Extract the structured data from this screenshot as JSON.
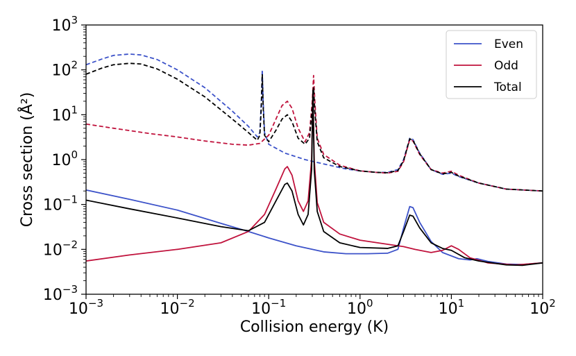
{
  "chart_data": {
    "type": "line",
    "xscale": "log",
    "yscale": "log",
    "xlim": [
      0.001,
      100
    ],
    "ylim": [
      0.001,
      1000
    ],
    "xlabel": "Collision energy (K)",
    "ylabel": "Cross section (Å²)",
    "x_tick_labels": [
      {
        "base": "10",
        "exp": "−3"
      },
      {
        "base": "10",
        "exp": "−2"
      },
      {
        "base": "10",
        "exp": "−1"
      },
      {
        "base": "10",
        "exp": "0"
      },
      {
        "base": "10",
        "exp": "1"
      },
      {
        "base": "10",
        "exp": "2"
      }
    ],
    "y_tick_labels": [
      {
        "base": "10",
        "exp": "−3"
      },
      {
        "base": "10",
        "exp": "−2"
      },
      {
        "base": "10",
        "exp": "−1"
      },
      {
        "base": "10",
        "exp": "0"
      },
      {
        "base": "10",
        "exp": "1"
      },
      {
        "base": "10",
        "exp": "2"
      },
      {
        "base": "10",
        "exp": "3"
      }
    ],
    "legend": {
      "position": "top-right",
      "entries": [
        {
          "name": "Even",
          "color": "#3c52c9"
        },
        {
          "name": "Odd",
          "color": "#c0123c"
        },
        {
          "name": "Total",
          "color": "#000000"
        }
      ]
    },
    "series": [
      {
        "name": "Even (dashed)",
        "color": "#3c52c9",
        "style": "dashed",
        "points": [
          [
            0.001,
            130
          ],
          [
            0.0015,
            175
          ],
          [
            0.002,
            210
          ],
          [
            0.003,
            225
          ],
          [
            0.004,
            215
          ],
          [
            0.006,
            170
          ],
          [
            0.01,
            100
          ],
          [
            0.02,
            40
          ],
          [
            0.04,
            12
          ],
          [
            0.06,
            5.5
          ],
          [
            0.075,
            3.2
          ],
          [
            0.08,
            4
          ],
          [
            0.083,
            20
          ],
          [
            0.085,
            100
          ],
          [
            0.087,
            20
          ],
          [
            0.09,
            4
          ],
          [
            0.1,
            2.2
          ],
          [
            0.15,
            1.4
          ],
          [
            0.25,
            1.0
          ],
          [
            0.4,
            0.8
          ],
          [
            0.7,
            0.62
          ],
          [
            1,
            0.56
          ],
          [
            1.5,
            0.52
          ],
          [
            2,
            0.52
          ],
          [
            2.6,
            0.6
          ],
          [
            3.0,
            1.0
          ],
          [
            3.5,
            3.0
          ],
          [
            3.8,
            2.8
          ],
          [
            4.5,
            1.4
          ],
          [
            6,
            0.6
          ],
          [
            8,
            0.47
          ],
          [
            10,
            0.5
          ],
          [
            12,
            0.42
          ],
          [
            20,
            0.3
          ],
          [
            40,
            0.22
          ],
          [
            100,
            0.2
          ]
        ]
      },
      {
        "name": "Odd (dashed)",
        "color": "#c0123c",
        "style": "dashed",
        "points": [
          [
            0.001,
            6.2
          ],
          [
            0.002,
            5
          ],
          [
            0.005,
            3.8
          ],
          [
            0.01,
            3.2
          ],
          [
            0.02,
            2.6
          ],
          [
            0.04,
            2.2
          ],
          [
            0.06,
            2.1
          ],
          [
            0.08,
            2.3
          ],
          [
            0.1,
            3.5
          ],
          [
            0.12,
            8
          ],
          [
            0.14,
            16
          ],
          [
            0.16,
            20
          ],
          [
            0.18,
            14
          ],
          [
            0.21,
            5
          ],
          [
            0.25,
            2.5
          ],
          [
            0.28,
            4
          ],
          [
            0.3,
            20
          ],
          [
            0.31,
            75
          ],
          [
            0.32,
            20
          ],
          [
            0.34,
            3
          ],
          [
            0.4,
            1.3
          ],
          [
            0.6,
            0.75
          ],
          [
            1,
            0.56
          ],
          [
            1.5,
            0.52
          ],
          [
            2,
            0.5
          ],
          [
            2.6,
            0.55
          ],
          [
            3.0,
            0.9
          ],
          [
            3.5,
            2.8
          ],
          [
            3.8,
            2.6
          ],
          [
            4.5,
            1.3
          ],
          [
            6,
            0.6
          ],
          [
            8,
            0.5
          ],
          [
            10,
            0.55
          ],
          [
            12,
            0.45
          ],
          [
            20,
            0.3
          ],
          [
            40,
            0.22
          ],
          [
            100,
            0.2
          ]
        ]
      },
      {
        "name": "Total (dashed)",
        "color": "#000000",
        "style": "dashed",
        "points": [
          [
            0.001,
            80
          ],
          [
            0.0015,
            110
          ],
          [
            0.002,
            130
          ],
          [
            0.003,
            140
          ],
          [
            0.004,
            135
          ],
          [
            0.006,
            105
          ],
          [
            0.01,
            62
          ],
          [
            0.02,
            25
          ],
          [
            0.04,
            8
          ],
          [
            0.06,
            4
          ],
          [
            0.075,
            2.7
          ],
          [
            0.08,
            3.5
          ],
          [
            0.083,
            15
          ],
          [
            0.085,
            80
          ],
          [
            0.087,
            15
          ],
          [
            0.09,
            3.5
          ],
          [
            0.1,
            2.5
          ],
          [
            0.12,
            4.5
          ],
          [
            0.14,
            8
          ],
          [
            0.16,
            10
          ],
          [
            0.18,
            7
          ],
          [
            0.21,
            3
          ],
          [
            0.25,
            2.2
          ],
          [
            0.28,
            3
          ],
          [
            0.3,
            15
          ],
          [
            0.31,
            40
          ],
          [
            0.32,
            12
          ],
          [
            0.34,
            2.5
          ],
          [
            0.4,
            1.1
          ],
          [
            0.6,
            0.7
          ],
          [
            1,
            0.56
          ],
          [
            1.5,
            0.52
          ],
          [
            2,
            0.51
          ],
          [
            2.6,
            0.57
          ],
          [
            3.0,
            0.95
          ],
          [
            3.5,
            2.9
          ],
          [
            3.8,
            2.7
          ],
          [
            4.5,
            1.35
          ],
          [
            6,
            0.6
          ],
          [
            8,
            0.48
          ],
          [
            10,
            0.52
          ],
          [
            12,
            0.43
          ],
          [
            20,
            0.3
          ],
          [
            40,
            0.22
          ],
          [
            100,
            0.2
          ]
        ]
      },
      {
        "name": "Even",
        "color": "#3c52c9",
        "style": "solid",
        "points": [
          [
            0.001,
            0.21
          ],
          [
            0.003,
            0.13
          ],
          [
            0.01,
            0.075
          ],
          [
            0.03,
            0.038
          ],
          [
            0.06,
            0.025
          ],
          [
            0.1,
            0.018
          ],
          [
            0.2,
            0.012
          ],
          [
            0.4,
            0.0088
          ],
          [
            0.7,
            0.008
          ],
          [
            1.2,
            0.008
          ],
          [
            2,
            0.0082
          ],
          [
            2.6,
            0.01
          ],
          [
            3.0,
            0.03
          ],
          [
            3.5,
            0.09
          ],
          [
            3.8,
            0.085
          ],
          [
            4.5,
            0.04
          ],
          [
            6,
            0.015
          ],
          [
            8,
            0.0085
          ],
          [
            12,
            0.0062
          ],
          [
            16,
            0.0058
          ],
          [
            19,
            0.0062
          ],
          [
            25,
            0.0054
          ],
          [
            40,
            0.0047
          ],
          [
            60,
            0.0046
          ],
          [
            100,
            0.005
          ]
        ]
      },
      {
        "name": "Odd",
        "color": "#c0123c",
        "style": "solid",
        "points": [
          [
            0.001,
            0.0055
          ],
          [
            0.003,
            0.0075
          ],
          [
            0.01,
            0.01
          ],
          [
            0.03,
            0.014
          ],
          [
            0.06,
            0.025
          ],
          [
            0.09,
            0.06
          ],
          [
            0.12,
            0.22
          ],
          [
            0.15,
            0.62
          ],
          [
            0.16,
            0.7
          ],
          [
            0.18,
            0.45
          ],
          [
            0.21,
            0.12
          ],
          [
            0.24,
            0.07
          ],
          [
            0.27,
            0.12
          ],
          [
            0.295,
            1.0
          ],
          [
            0.305,
            35
          ],
          [
            0.315,
            1.0
          ],
          [
            0.34,
            0.11
          ],
          [
            0.4,
            0.04
          ],
          [
            0.6,
            0.022
          ],
          [
            1,
            0.016
          ],
          [
            2,
            0.013
          ],
          [
            3,
            0.0115
          ],
          [
            4,
            0.01
          ],
          [
            6,
            0.0085
          ],
          [
            8,
            0.0095
          ],
          [
            10,
            0.012
          ],
          [
            12,
            0.01
          ],
          [
            16,
            0.0065
          ],
          [
            25,
            0.005
          ],
          [
            50,
            0.0045
          ],
          [
            100,
            0.005
          ]
        ]
      },
      {
        "name": "Total",
        "color": "#000000",
        "style": "solid",
        "points": [
          [
            0.001,
            0.125
          ],
          [
            0.003,
            0.08
          ],
          [
            0.01,
            0.05
          ],
          [
            0.03,
            0.032
          ],
          [
            0.06,
            0.026
          ],
          [
            0.09,
            0.04
          ],
          [
            0.12,
            0.12
          ],
          [
            0.15,
            0.28
          ],
          [
            0.16,
            0.3
          ],
          [
            0.18,
            0.2
          ],
          [
            0.21,
            0.06
          ],
          [
            0.24,
            0.035
          ],
          [
            0.27,
            0.06
          ],
          [
            0.295,
            0.6
          ],
          [
            0.305,
            35
          ],
          [
            0.315,
            0.6
          ],
          [
            0.34,
            0.07
          ],
          [
            0.4,
            0.025
          ],
          [
            0.6,
            0.014
          ],
          [
            1,
            0.011
          ],
          [
            2,
            0.0105
          ],
          [
            2.6,
            0.012
          ],
          [
            3.0,
            0.025
          ],
          [
            3.5,
            0.058
          ],
          [
            3.8,
            0.055
          ],
          [
            4.5,
            0.03
          ],
          [
            6,
            0.014
          ],
          [
            8,
            0.0105
          ],
          [
            10,
            0.0095
          ],
          [
            14,
            0.0065
          ],
          [
            20,
            0.0055
          ],
          [
            40,
            0.0045
          ],
          [
            60,
            0.0044
          ],
          [
            100,
            0.005
          ]
        ]
      }
    ]
  }
}
